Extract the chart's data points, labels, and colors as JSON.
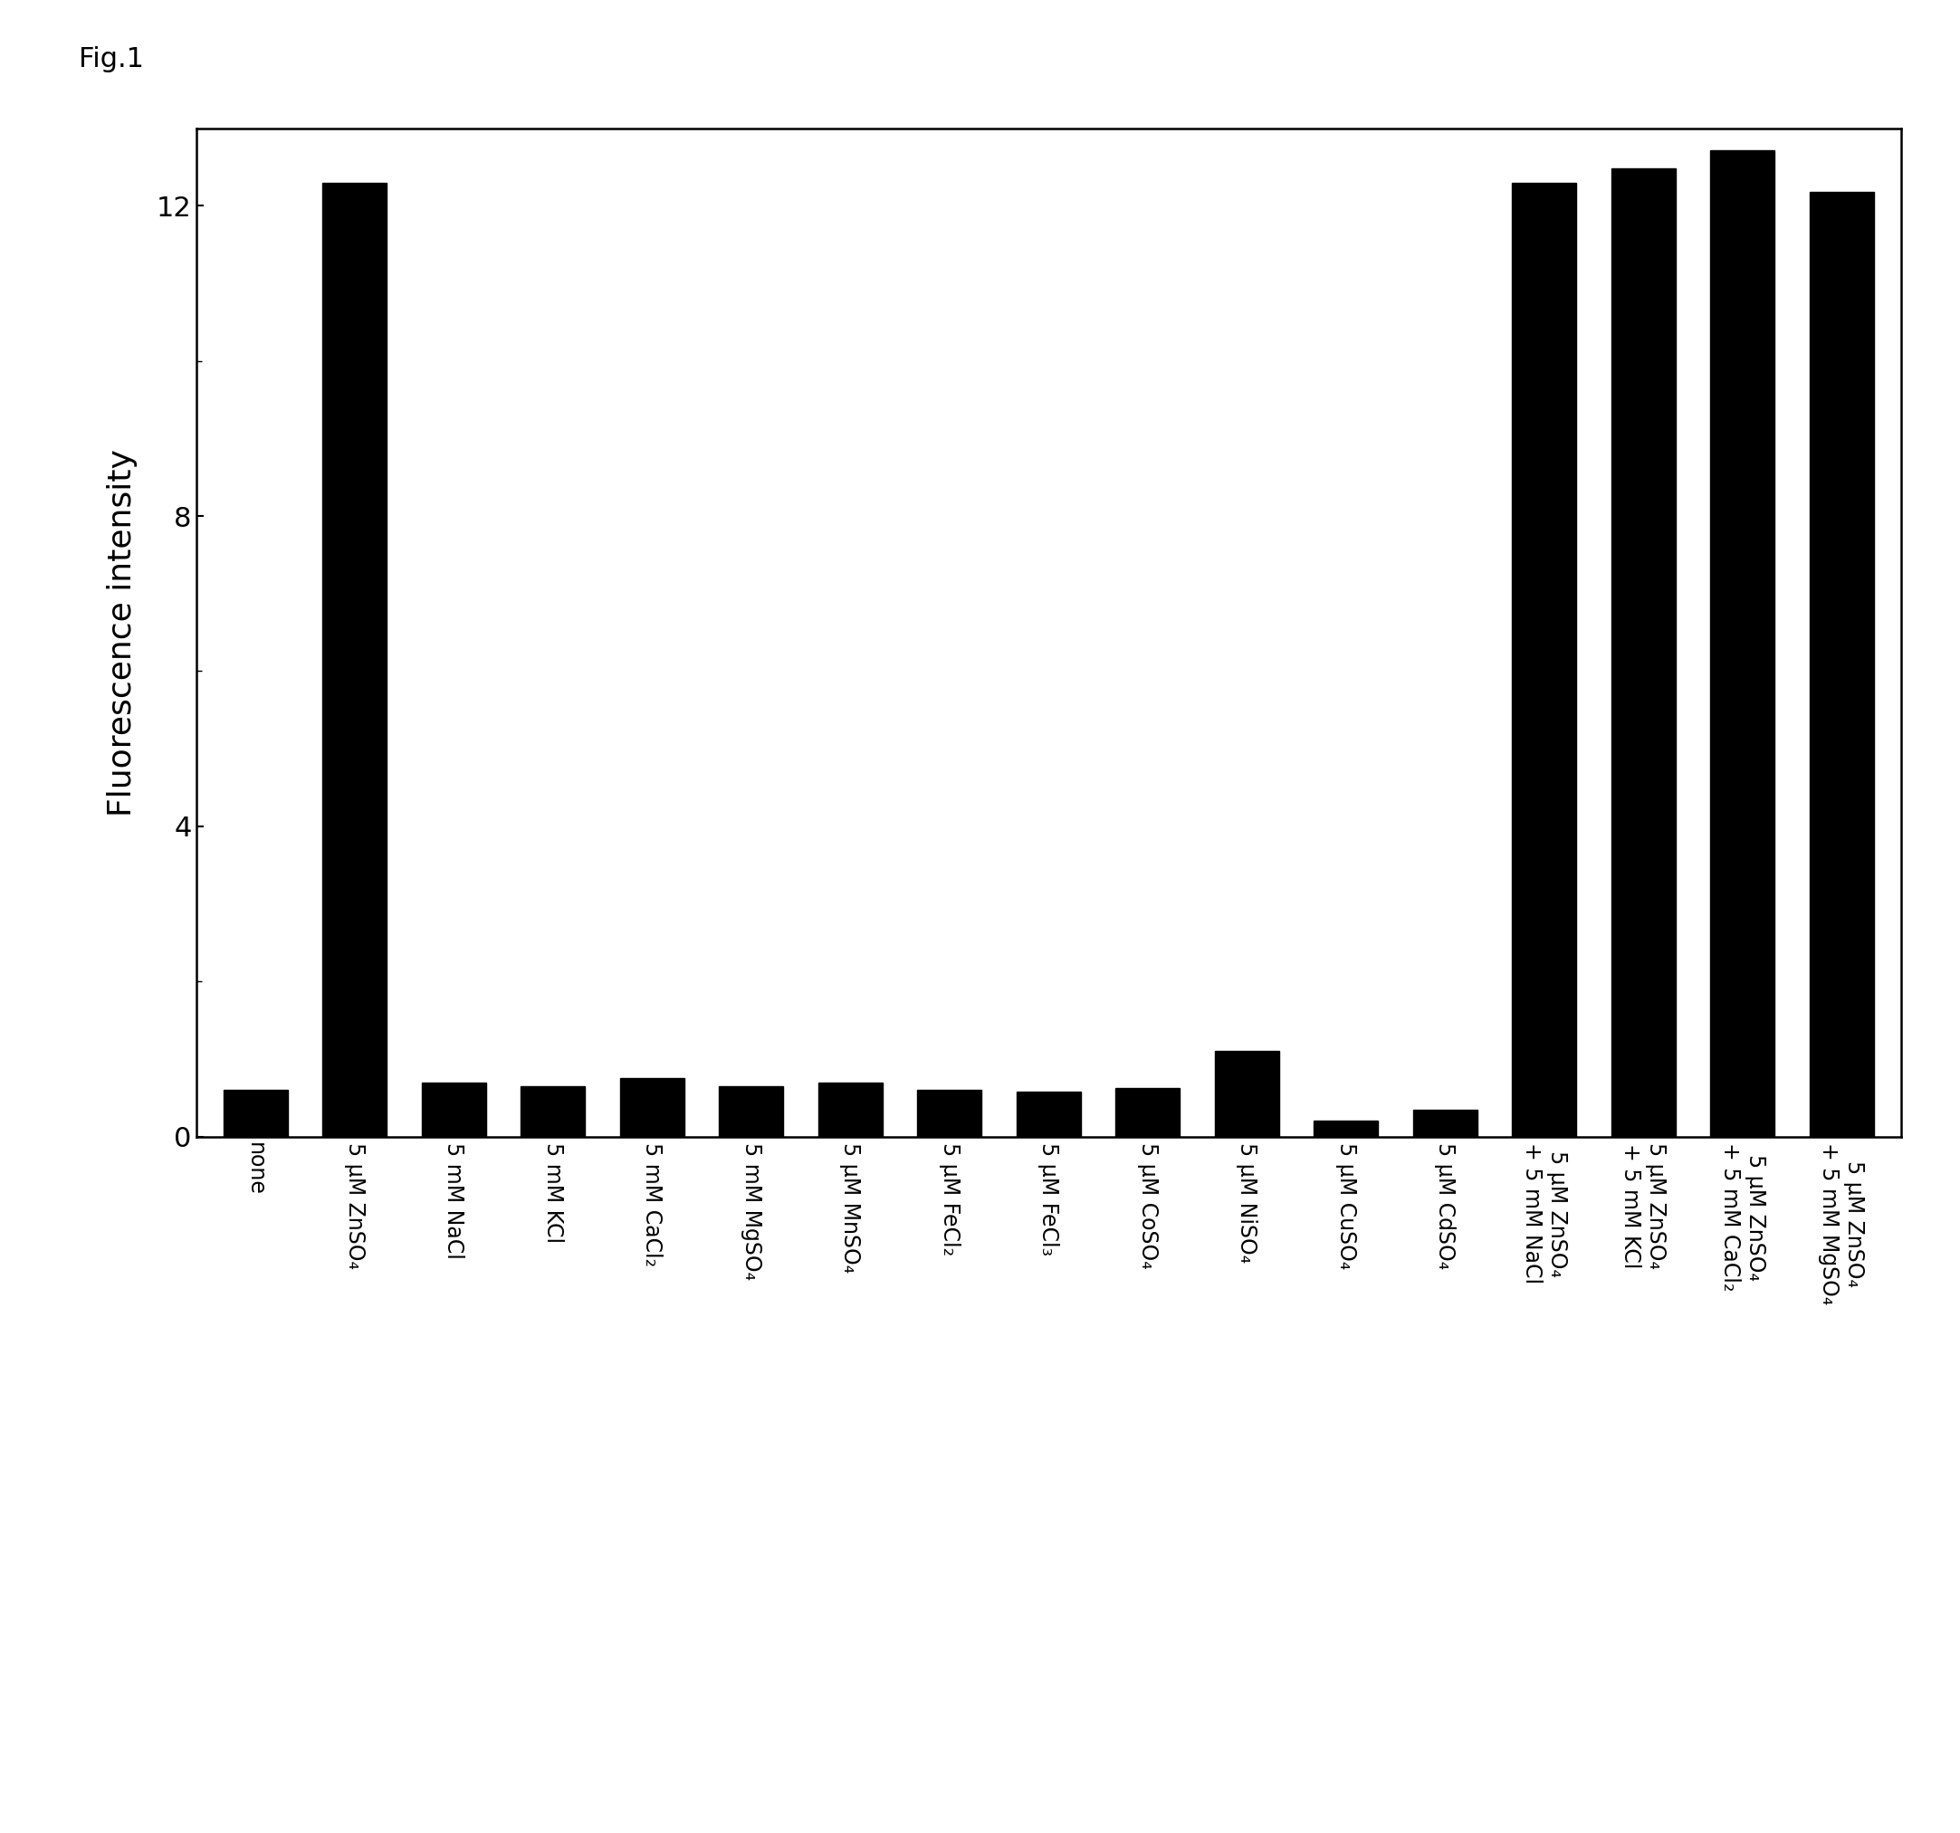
{
  "categories": [
    "none",
    "5 μM ZnSO₄",
    "5 mM NaCl",
    "5 mM KCl",
    "5 mM CaCl₂",
    "5 mM MgSO₄",
    "5 μM MnSO₄",
    "5 μM FeCl₂",
    "5 μM FeCl₃",
    "5 μM CoSO₄",
    "5 μM NiSO₄",
    "5 μM CuSO₄",
    "5 μM CdSO₄",
    "5 μM ZnSO₄\n+ 5 mM NaCl",
    "5 μM ZnSO₄\n+ 5 mM KCl",
    "5 μM ZnSO₄\n+ 5 mM CaCl₂",
    "5 μM ZnSO₄\n+ 5 mM MgSO₄"
  ],
  "values": [
    0.6,
    12.3,
    0.7,
    0.65,
    0.75,
    0.65,
    0.7,
    0.6,
    0.58,
    0.63,
    1.1,
    0.2,
    0.35,
    12.3,
    12.48,
    12.72,
    12.18
  ],
  "bar_color": "#000000",
  "ylabel": "Fluorescence intensity",
  "ylim": [
    0,
    13
  ],
  "yticks": [
    0,
    4,
    8,
    12
  ],
  "fig_label": "Fig.1",
  "background_color": "#ffffff",
  "fig_label_fontsize": 22,
  "ylabel_fontsize": 26,
  "ytick_fontsize": 22,
  "xtick_fontsize": 17,
  "bar_width": 0.65
}
